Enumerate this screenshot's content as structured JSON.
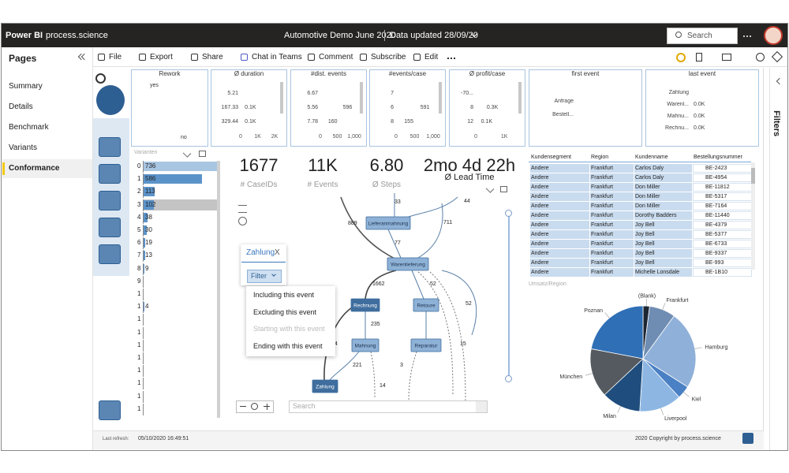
{
  "header": {
    "app": "Power BI",
    "workspace": "process.science",
    "report": "Automotive Demo June 2020",
    "updated": "Data updated 28/09/20",
    "search": "Search"
  },
  "pages": {
    "title": "Pages",
    "items": [
      "Summary",
      "Details",
      "Benchmark",
      "Variants",
      "Conformance"
    ],
    "active": "Conformance"
  },
  "toolbar": [
    "File",
    "Export",
    "Share",
    "Chat in Teams",
    "Comment",
    "Subscribe",
    "Edit"
  ],
  "cards": [
    {
      "type": "pie",
      "title": "Rework",
      "categories": [
        "yes",
        "no"
      ],
      "values": [
        5,
        95
      ],
      "colors": [
        "#1f2933",
        "#c9d9ea"
      ]
    },
    {
      "type": "bar",
      "title": "Ø duration",
      "categories": [
        "5.21",
        "167.33",
        "329.44"
      ],
      "values": [
        1500,
        100,
        100
      ],
      "value_labels": [
        "1.5K",
        "0.1K",
        "0.1K"
      ],
      "xlim": [
        0,
        2000
      ],
      "xticks": [
        0,
        {
          "value": 1000,
          "label": "1K"
        },
        {
          "value": 2000,
          "label": "2K"
        }
      ],
      "color": "#2e5f93"
    },
    {
      "type": "bar",
      "title": "#dist. events",
      "categories": [
        "6.67",
        "5.56",
        "7.78"
      ],
      "values": [
        895,
        596,
        160
      ],
      "xlim": [
        0,
        1000
      ],
      "xticks": [
        0,
        500,
        {
          "value": 1000,
          "label": "1,000"
        }
      ],
      "color": "#2e5f93"
    },
    {
      "type": "bar",
      "title": "#events/case",
      "categories": [
        "7",
        "6",
        "8"
      ],
      "values": [
        891,
        591,
        155
      ],
      "xlim": [
        0,
        1000
      ],
      "xticks": [
        0,
        500,
        {
          "value": 1000,
          "label": "1,000"
        }
      ],
      "color": "#2e5f93"
    },
    {
      "type": "bar",
      "title": "Ø profit/case",
      "categories": [
        "-70...",
        "8",
        "12"
      ],
      "values": [
        1200,
        300,
        100
      ],
      "value_labels": [
        "1.2K",
        "0.3K",
        "0.1K"
      ],
      "xlim": [
        0,
        1300
      ],
      "xticks": [
        0,
        {
          "value": 1000,
          "label": "1K"
        }
      ],
      "color": "#2e5f93"
    },
    {
      "type": "bar",
      "title": "first event",
      "categories": [
        "Anfrage",
        "Bestell..."
      ],
      "values": [
        922,
        755
      ],
      "xlim": [
        0,
        1000
      ],
      "color": "#2e5f93"
    },
    {
      "type": "bar",
      "title": "last event",
      "categories": [
        "Zahlung",
        "Warenl...",
        "Mahnu...",
        "Rechnu..."
      ],
      "values": [
        1600,
        0,
        0,
        0
      ],
      "value_labels": [
        "1.6K",
        "0.0K",
        "0.0K",
        "0.0K"
      ],
      "xlim": [
        0,
        2000
      ],
      "color": "#2e5f93"
    }
  ],
  "variants": {
    "title": "Varianten",
    "ids": [
      "0",
      "1",
      "2",
      "3",
      "4",
      "5",
      "6",
      "7",
      "8",
      "9",
      "1",
      "1",
      "1",
      "1",
      "1",
      "1",
      "1",
      "1",
      "1",
      "1"
    ],
    "counts": [
      736,
      586,
      113,
      102,
      38,
      30,
      19,
      13,
      9,
      null,
      null,
      4,
      null,
      null,
      null,
      null,
      null,
      null,
      null,
      null
    ],
    "xlim": [
      0,
      736
    ]
  },
  "kpis": [
    {
      "value": "1677",
      "label": "# CaseIDs"
    },
    {
      "value": "11K",
      "label": "# Events"
    },
    {
      "value": "6.80",
      "label": "Ø Steps"
    },
    {
      "value": "2mo 4d 22h",
      "label": "Ø Lead Time"
    }
  ],
  "process_map": {
    "nodes": [
      "Lieferanmahnung",
      "Warenlieferung",
      "Rechnung",
      "Retoure",
      "Mahnung",
      "Reparatur",
      "Zahlung"
    ],
    "edge_labels": [
      "33",
      "44",
      "889",
      "711",
      "77",
      "1662",
      "52",
      "52",
      "235",
      "4",
      "15",
      "221",
      "3",
      "14"
    ],
    "popup": {
      "title": "Zahlung",
      "close": "X",
      "button": "Filter",
      "menu": [
        "Including this event",
        "Excluding this event",
        "Starting with this event",
        "Ending with this event"
      ],
      "disabled": "Starting with this event"
    },
    "search": "Search"
  },
  "table": {
    "columns": [
      "Kundensegment",
      "Region",
      "Kundenname",
      "Bestellungsnummer"
    ],
    "rows": [
      [
        "Andere",
        "Frankfurt",
        "Carlos Daly",
        "BE-2423"
      ],
      [
        "Andere",
        "Frankfurt",
        "Carlos Daly",
        "BE-4954"
      ],
      [
        "Andere",
        "Frankfurt",
        "Don Miller",
        "BE-11812"
      ],
      [
        "Andere",
        "Frankfurt",
        "Don Miller",
        "BE-5317"
      ],
      [
        "Andere",
        "Frankfurt",
        "Don Miller",
        "BE-7164"
      ],
      [
        "Andere",
        "Frankfurt",
        "Dorothy Badders",
        "BE-11440"
      ],
      [
        "Andere",
        "Frankfurt",
        "Joy Bell",
        "BE-4379"
      ],
      [
        "Andere",
        "Frankfurt",
        "Joy Bell",
        "BE-5377"
      ],
      [
        "Andere",
        "Frankfurt",
        "Joy Bell",
        "BE-6733"
      ],
      [
        "Andere",
        "Frankfurt",
        "Joy Bell",
        "BE-9337"
      ],
      [
        "Andere",
        "Frankfurt",
        "Joy Bell",
        "BE-993"
      ],
      [
        "Andere",
        "Frankfurt",
        "Michelle Lonsdale",
        "BE-1B10"
      ]
    ]
  },
  "region_chart": {
    "type": "pie",
    "title": "Umsatz/Region",
    "categories": [
      "(Blank)",
      "Frankfurt",
      "Hamburg",
      "Kiel",
      "Liverpool",
      "Milan",
      "München",
      "Poznan"
    ],
    "values": [
      2,
      8,
      24,
      4,
      13,
      12,
      15,
      22
    ],
    "colors": [
      "#1c2633",
      "#6f8db3",
      "#8fb0d8",
      "#4a80c4",
      "#8db6e3",
      "#1f4e7e",
      "#555a60",
      "#2f6fb6"
    ]
  },
  "footer": {
    "refresh_label": "Last refresh:",
    "refresh": "05/10/2020 16:49:51",
    "copyright": "2020 Copyright by process.science"
  },
  "filters": "Filters"
}
